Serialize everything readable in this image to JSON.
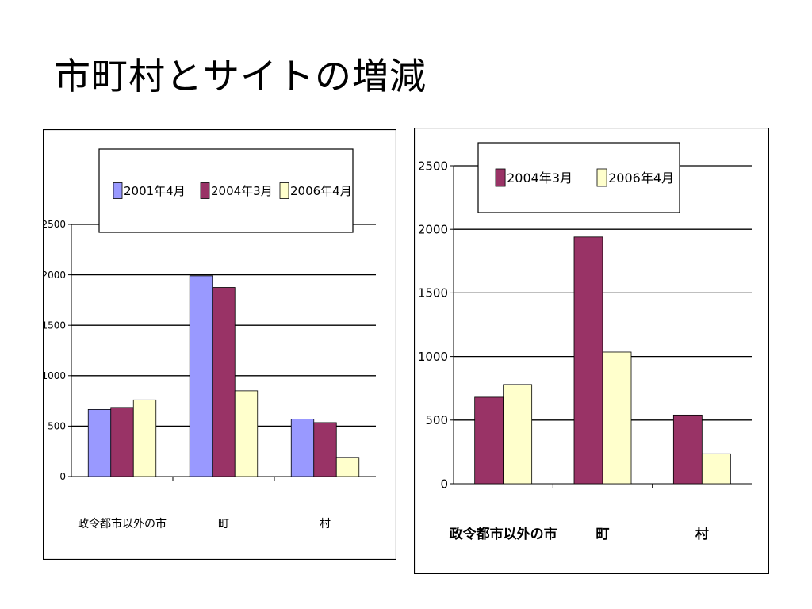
{
  "slide": {
    "title": "市町村とサイトの増減"
  },
  "chart_data": [
    {
      "type": "bar",
      "categories": [
        "政令都市以外の市",
        "町",
        "村"
      ],
      "series": [
        {
          "name": "2001年4月",
          "values": [
            665,
            1990,
            570
          ]
        },
        {
          "name": "2004年3月",
          "values": [
            685,
            1875,
            535
          ]
        },
        {
          "name": "2006年4月",
          "values": [
            760,
            850,
            190
          ]
        }
      ],
      "colors": [
        "#9999ff",
        "#993366",
        "#ffffcc"
      ],
      "ylim": [
        0,
        2500
      ],
      "yticks": [
        0,
        500,
        1000,
        1500,
        2000,
        2500
      ],
      "grid": true,
      "legend": "top"
    },
    {
      "type": "bar",
      "categories": [
        "政令都市以外の市",
        "町",
        "村"
      ],
      "series": [
        {
          "name": "2004年3月",
          "values": [
            680,
            1940,
            540
          ]
        },
        {
          "name": "2006年4月",
          "values": [
            780,
            1035,
            235
          ]
        }
      ],
      "colors": [
        "#993366",
        "#ffffcc"
      ],
      "ylim": [
        0,
        2500
      ],
      "yticks": [
        0,
        500,
        1000,
        1500,
        2000,
        2500
      ],
      "grid": true,
      "legend": "top"
    }
  ]
}
